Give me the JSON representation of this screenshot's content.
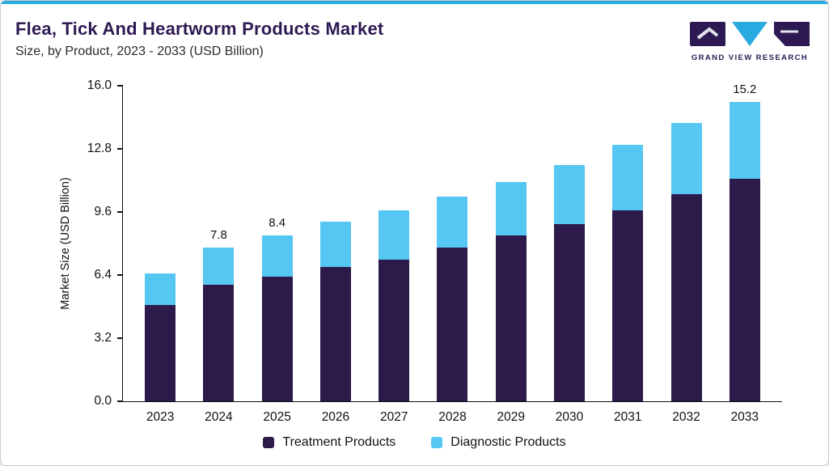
{
  "header": {
    "title": "Flea, Tick And Heartworm Products Market",
    "subtitle": "Size, by Product, 2023 - 2033 (USD Billion)"
  },
  "logo": {
    "text": "GRAND VIEW RESEARCH"
  },
  "colors": {
    "accent_line": "#29ABE2",
    "title": "#2E1A52",
    "treatment": "#2B1A4A",
    "diagnostic": "#56C7F2"
  },
  "chart_data": {
    "type": "bar",
    "stacked": true,
    "title": "Flea, Tick And Heartworm Products Market Size, by Product, 2023 - 2033 (USD Billion)",
    "categories": [
      "2023",
      "2024",
      "2025",
      "2026",
      "2027",
      "2028",
      "2029",
      "2030",
      "2031",
      "2032",
      "2033"
    ],
    "series": [
      {
        "name": "Treatment Products",
        "color": "#2B1A4A",
        "values": [
          4.9,
          5.9,
          6.3,
          6.8,
          7.2,
          7.8,
          8.4,
          9.0,
          9.7,
          10.5,
          11.3
        ]
      },
      {
        "name": "Diagnostic Products",
        "color": "#56C7F2",
        "values": [
          1.6,
          1.9,
          2.1,
          2.3,
          2.5,
          2.6,
          2.7,
          3.0,
          3.3,
          3.6,
          3.9
        ]
      }
    ],
    "value_labels": [
      null,
      "7.8",
      "8.4",
      null,
      null,
      null,
      null,
      null,
      null,
      null,
      "15.2"
    ],
    "ylabel": "Market Size (USD Billion)",
    "yticks": [
      0.0,
      3.2,
      6.4,
      9.6,
      12.8,
      16.0
    ],
    "ylim": [
      0,
      16
    ],
    "grid": false,
    "legend_position": "bottom"
  }
}
